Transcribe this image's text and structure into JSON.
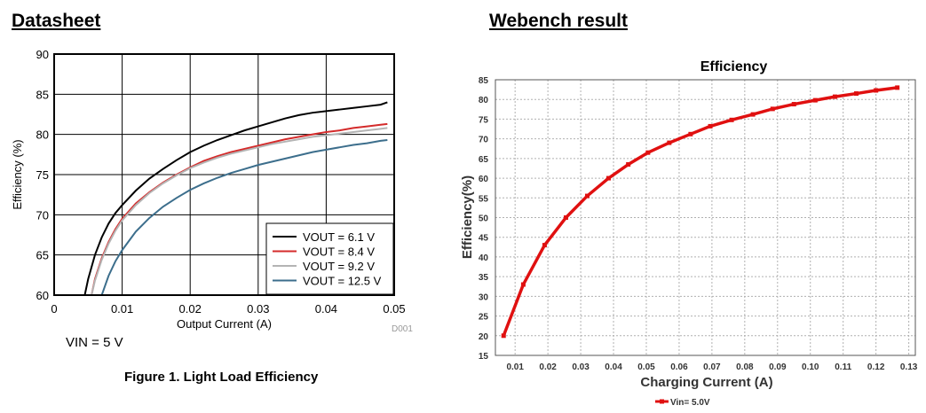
{
  "left_panel": {
    "heading": "Datasheet",
    "note": "VIN = 5 V",
    "caption": "Figure 1. Light Load Efficiency",
    "figure_code": "D001"
  },
  "right_panel": {
    "heading": "Webench result"
  },
  "chart_data": [
    {
      "type": "line",
      "title": "",
      "xlabel": "Output Current (A)",
      "ylabel": "Efficiency (%)",
      "xlim": [
        0,
        0.05
      ],
      "ylim": [
        60,
        90
      ],
      "xticks": [
        0,
        0.01,
        0.02,
        0.03,
        0.04,
        0.05
      ],
      "xtick_labels": [
        "0",
        "0.01",
        "0.02",
        "0.03",
        "0.04",
        "0.05"
      ],
      "yticks": [
        60,
        65,
        70,
        75,
        80,
        85,
        90
      ],
      "ytick_labels": [
        "60",
        "65",
        "70",
        "75",
        "80",
        "85",
        "90"
      ],
      "grid": true,
      "legend_position": "bottom-right",
      "series": [
        {
          "name": "VOUT = 6.1 V",
          "color": "#000000",
          "x": [
            0.0045,
            0.005,
            0.006,
            0.007,
            0.008,
            0.009,
            0.01,
            0.012,
            0.014,
            0.016,
            0.018,
            0.02,
            0.022,
            0.024,
            0.026,
            0.028,
            0.03,
            0.032,
            0.034,
            0.036,
            0.038,
            0.04,
            0.042,
            0.044,
            0.046,
            0.048,
            0.049
          ],
          "y": [
            60.0,
            62.0,
            65.0,
            67.2,
            68.9,
            70.2,
            71.2,
            73.0,
            74.5,
            75.7,
            76.8,
            77.8,
            78.6,
            79.3,
            79.9,
            80.5,
            81.0,
            81.5,
            82.0,
            82.4,
            82.7,
            82.9,
            83.1,
            83.3,
            83.5,
            83.7,
            84.0
          ]
        },
        {
          "name": "VOUT = 8.4 V",
          "color": "#d42b2b",
          "x": [
            0.0055,
            0.006,
            0.007,
            0.008,
            0.009,
            0.01,
            0.012,
            0.014,
            0.016,
            0.018,
            0.02,
            0.022,
            0.024,
            0.026,
            0.028,
            0.03,
            0.032,
            0.034,
            0.036,
            0.038,
            0.04,
            0.042,
            0.044,
            0.046,
            0.048,
            0.049
          ],
          "y": [
            60.0,
            62.0,
            64.6,
            66.6,
            68.2,
            69.5,
            71.4,
            72.8,
            74.0,
            75.0,
            75.9,
            76.7,
            77.3,
            77.8,
            78.2,
            78.6,
            79.0,
            79.4,
            79.7,
            80.0,
            80.3,
            80.5,
            80.8,
            81.0,
            81.2,
            81.3
          ]
        },
        {
          "name": "VOUT = 9.2 V",
          "color": "#b4b4b4",
          "x": [
            0.0055,
            0.006,
            0.007,
            0.008,
            0.009,
            0.01,
            0.012,
            0.014,
            0.016,
            0.018,
            0.02,
            0.022,
            0.024,
            0.026,
            0.028,
            0.03,
            0.032,
            0.034,
            0.036,
            0.038,
            0.04,
            0.042,
            0.044,
            0.046,
            0.048,
            0.049
          ],
          "y": [
            60.0,
            61.8,
            64.4,
            66.4,
            68.0,
            69.3,
            71.2,
            72.7,
            73.9,
            74.9,
            75.8,
            76.5,
            77.1,
            77.6,
            78.0,
            78.4,
            78.8,
            79.1,
            79.4,
            79.7,
            79.9,
            80.1,
            80.3,
            80.5,
            80.7,
            80.8
          ]
        },
        {
          "name": "VOUT = 12.5 V",
          "color": "#3c6e8c",
          "x": [
            0.007,
            0.008,
            0.009,
            0.01,
            0.012,
            0.014,
            0.016,
            0.018,
            0.02,
            0.022,
            0.024,
            0.026,
            0.028,
            0.03,
            0.032,
            0.034,
            0.036,
            0.038,
            0.04,
            0.042,
            0.044,
            0.046,
            0.048,
            0.049
          ],
          "y": [
            60.0,
            62.4,
            64.2,
            65.6,
            67.9,
            69.6,
            71.0,
            72.1,
            73.1,
            73.9,
            74.6,
            75.2,
            75.7,
            76.2,
            76.6,
            77.0,
            77.4,
            77.8,
            78.1,
            78.4,
            78.7,
            78.9,
            79.2,
            79.3
          ]
        }
      ]
    },
    {
      "type": "line",
      "title": "Efficiency",
      "xlabel": "Charging Current (A)",
      "ylabel": "Efficiency(%)",
      "xlim": [
        0.004,
        0.132
      ],
      "ylim": [
        15,
        85
      ],
      "xticks": [
        0.01,
        0.02,
        0.03,
        0.04,
        0.05,
        0.06,
        0.07,
        0.08,
        0.09,
        0.1,
        0.11,
        0.12,
        0.13
      ],
      "xtick_labels": [
        "0.01",
        "0.02",
        "0.03",
        "0.04",
        "0.05",
        "0.06",
        "0.07",
        "0.08",
        "0.09",
        "0.10",
        "0.11",
        "0.12",
        "0.13"
      ],
      "yticks": [
        15,
        20,
        25,
        30,
        35,
        40,
        45,
        50,
        55,
        60,
        65,
        70,
        75,
        80,
        85
      ],
      "ytick_labels": [
        "15",
        "20",
        "25",
        "30",
        "35",
        "40",
        "45",
        "50",
        "55",
        "60",
        "65",
        "70",
        "75",
        "80",
        "85"
      ],
      "grid": true,
      "legend_position": "bottom-center",
      "series": [
        {
          "name": "Vin= 5.0V",
          "color": "#e01010",
          "x": [
            0.0065,
            0.0125,
            0.019,
            0.0255,
            0.032,
            0.0385,
            0.0445,
            0.0505,
            0.057,
            0.0635,
            0.0695,
            0.076,
            0.0825,
            0.0885,
            0.095,
            0.1015,
            0.1075,
            0.114,
            0.12,
            0.1265
          ],
          "y": [
            20.0,
            33.0,
            43.0,
            50.0,
            55.5,
            60.0,
            63.5,
            66.5,
            69.0,
            71.2,
            73.2,
            74.8,
            76.2,
            77.6,
            78.8,
            79.8,
            80.7,
            81.5,
            82.3,
            83.0
          ]
        }
      ]
    }
  ]
}
